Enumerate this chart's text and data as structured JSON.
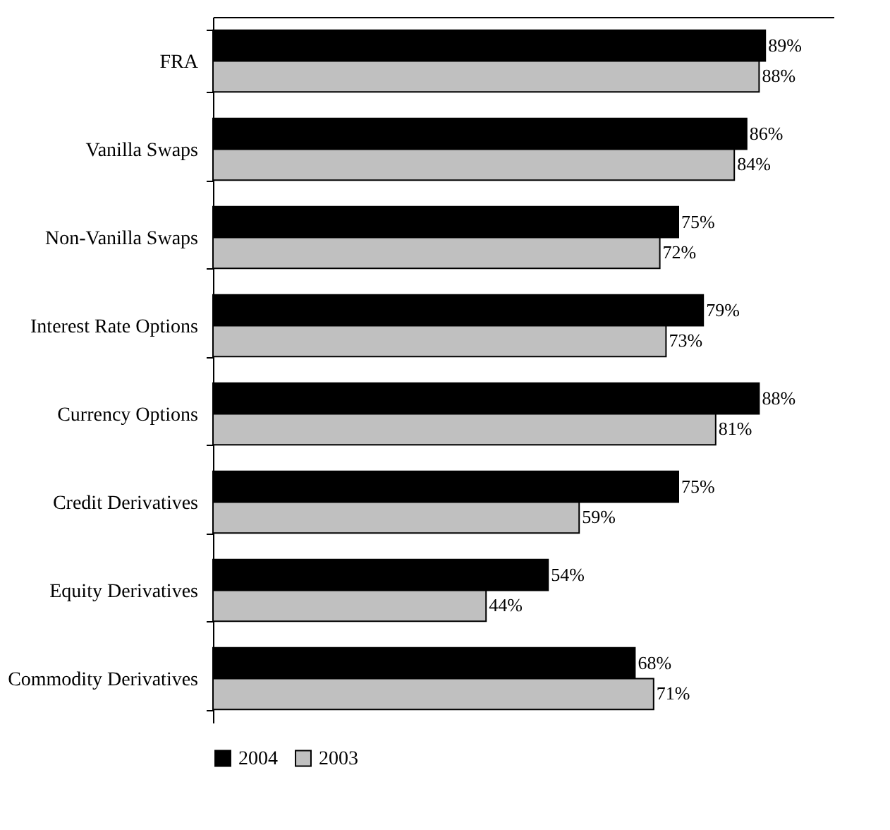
{
  "chart_data": {
    "type": "bar",
    "orientation": "horizontal",
    "categories": [
      "FRA",
      "Vanilla Swaps",
      "Non-Vanilla Swaps",
      "Interest Rate Options",
      "Currency Options",
      "Credit Derivatives",
      "Equity Derivatives",
      "Commodity Derivatives"
    ],
    "series": [
      {
        "name": "2004",
        "color": "#000000",
        "values": [
          89,
          86,
          75,
          79,
          88,
          75,
          54,
          68
        ],
        "value_labels": [
          "89%",
          "86%",
          "75%",
          "79%",
          "88%",
          "75%",
          "54%",
          "68%"
        ]
      },
      {
        "name": "2003",
        "color": "#c0c0c0",
        "values": [
          88,
          84,
          72,
          73,
          81,
          59,
          44,
          71
        ],
        "value_labels": [
          "88%",
          "84%",
          "72%",
          "73%",
          "81%",
          "59%",
          "44%",
          "71%"
        ]
      }
    ],
    "xlim": [
      0,
      100
    ],
    "tick_labels": "y",
    "legend": "bottom",
    "grid": false
  }
}
